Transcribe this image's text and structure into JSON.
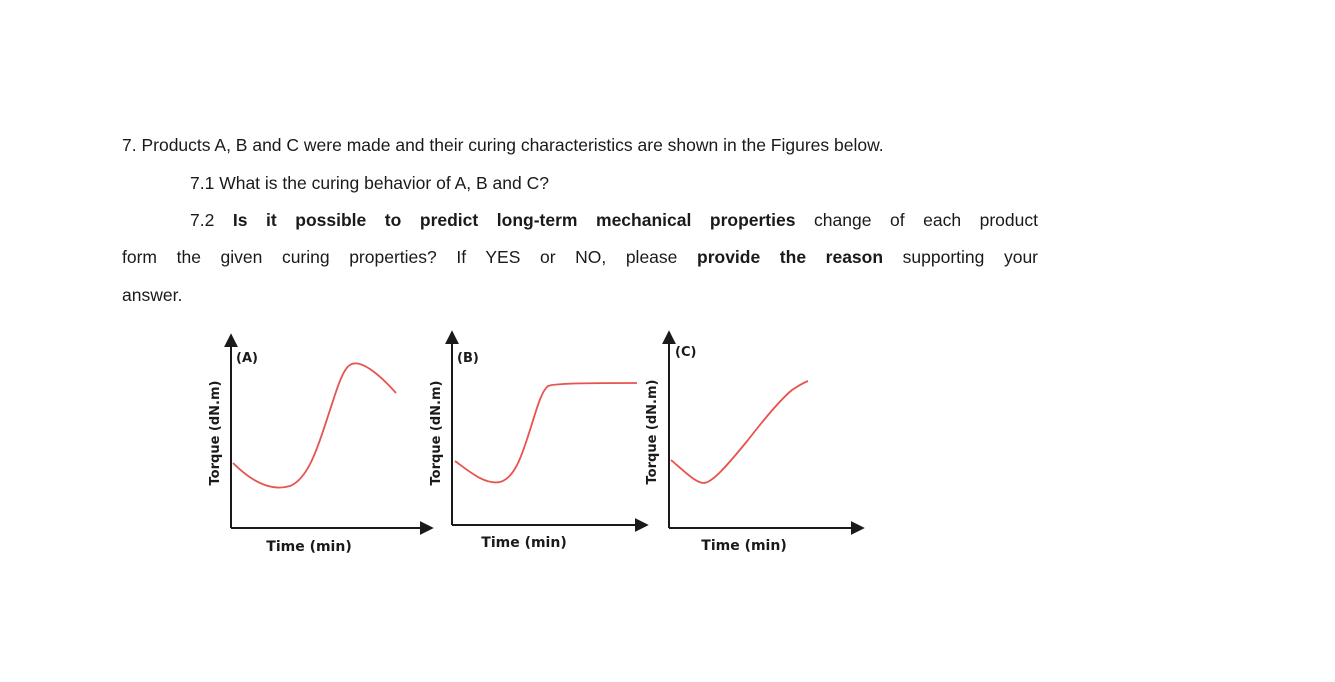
{
  "question": {
    "line1": "7. Products A, B and C were made and their curing characteristics are shown in the Figures below.",
    "q71": "7.1 What is the curing behavior of A, B and C?",
    "q72_prefix": "7.2 ",
    "q72_bold1": "Is it possible to predict long-term mechanical properties",
    "q72_mid1": " change of each product",
    "line4_text": "form the given curing properties? If YES or NO, please ",
    "line4_bold": "provide the reason",
    "line4_tail": " supporting your",
    "line5": "answer."
  },
  "figures": [
    {
      "label": "(A)",
      "xlabel": "Time (min)",
      "ylabel": "Torque (dN.m)"
    },
    {
      "label": "(B)",
      "xlabel": "Time (min)",
      "ylabel": "Torque (dN.m)"
    },
    {
      "label": "(C)",
      "xlabel": "Time (min)",
      "ylabel": "Torque (dN.m)"
    }
  ],
  "colors": {
    "curve": "#e8524f",
    "axis": "#1a1a1a",
    "text": "#1a1a1a"
  }
}
